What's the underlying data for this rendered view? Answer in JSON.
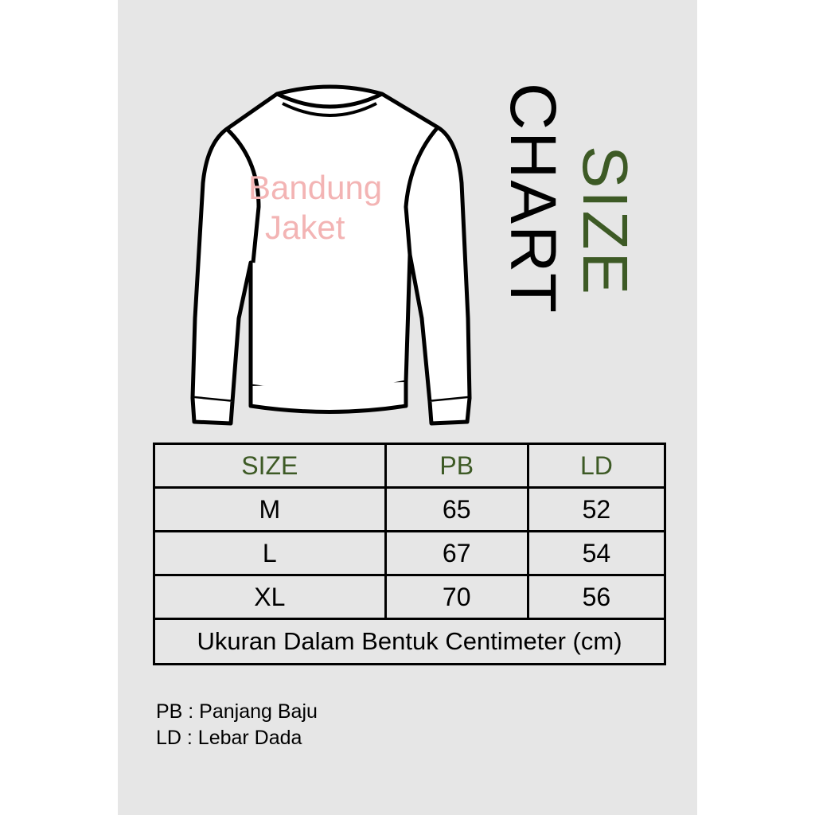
{
  "watermark": {
    "line1": "Bandung",
    "line2": "Jaket"
  },
  "title": {
    "word1": "SIZE",
    "word2": "CHART"
  },
  "colors": {
    "accent": "#3d5a25",
    "background": "#e6e6e6",
    "watermark": "#f3b4b4"
  },
  "table": {
    "headers": [
      "SIZE",
      "PB",
      "LD"
    ],
    "rows": [
      [
        "M",
        "65",
        "52"
      ],
      [
        "L",
        "67",
        "54"
      ],
      [
        "XL",
        "70",
        "56"
      ]
    ],
    "note": "Ukuran Dalam Bentuk Centimeter (cm)"
  },
  "legend": [
    "PB : Panjang Baju",
    "LD : Lebar Dada"
  ]
}
